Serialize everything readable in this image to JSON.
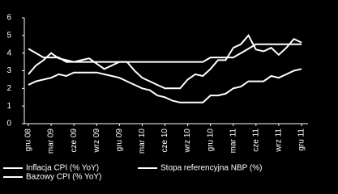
{
  "chart_data": {
    "type": "line",
    "categories": [
      "gru 08",
      null,
      null,
      "mar 09",
      null,
      null,
      "cze 09",
      null,
      null,
      "wrz 09",
      null,
      null,
      "gru 09",
      null,
      null,
      "mar 10",
      null,
      null,
      "cze 10",
      null,
      null,
      "wrz 10",
      null,
      null,
      "gru 10",
      null,
      null,
      "mar 11",
      null,
      null,
      "cze 11",
      null,
      null,
      "wrz 11",
      null,
      null,
      "gru 11"
    ],
    "series": [
      {
        "name": "Inflacja CPI (% YoY)",
        "color": "#ffffff",
        "values": [
          2.8,
          3.3,
          3.6,
          4.0,
          3.7,
          3.6,
          3.5,
          3.6,
          3.7,
          3.4,
          3.1,
          3.3,
          3.5,
          3.5,
          3.0,
          2.6,
          2.4,
          2.2,
          2.0,
          2.0,
          2.0,
          2.5,
          2.8,
          2.7,
          3.1,
          3.6,
          3.6,
          4.3,
          4.5,
          5.0,
          4.2,
          4.1,
          4.3,
          3.9,
          4.3,
          4.8,
          4.6
        ]
      },
      {
        "name": "Stopa referencyjna NBP (%)",
        "color": "#ffffff",
        "values": [
          4.25,
          4.0,
          3.75,
          3.75,
          3.75,
          3.5,
          3.5,
          3.5,
          3.5,
          3.5,
          3.5,
          3.5,
          3.5,
          3.5,
          3.5,
          3.5,
          3.5,
          3.5,
          3.5,
          3.5,
          3.5,
          3.5,
          3.5,
          3.5,
          3.75,
          3.75,
          3.75,
          3.75,
          4.0,
          4.25,
          4.5,
          4.5,
          4.5,
          4.5,
          4.5,
          4.5,
          4.5
        ]
      },
      {
        "name": "Bazowy CPI (% YoY)",
        "color": "#ffffff",
        "values": [
          2.2,
          2.4,
          2.5,
          2.6,
          2.8,
          2.7,
          2.9,
          2.9,
          2.9,
          2.9,
          2.8,
          2.7,
          2.6,
          2.4,
          2.2,
          2.0,
          1.9,
          1.6,
          1.5,
          1.3,
          1.2,
          1.2,
          1.2,
          1.2,
          1.6,
          1.6,
          1.7,
          2.0,
          2.1,
          2.4,
          2.4,
          2.4,
          2.7,
          2.6,
          2.8,
          3.0,
          3.1
        ]
      }
    ],
    "ylim": [
      0,
      6
    ],
    "yticks": [
      0,
      1,
      2,
      3,
      4,
      5,
      6
    ]
  }
}
